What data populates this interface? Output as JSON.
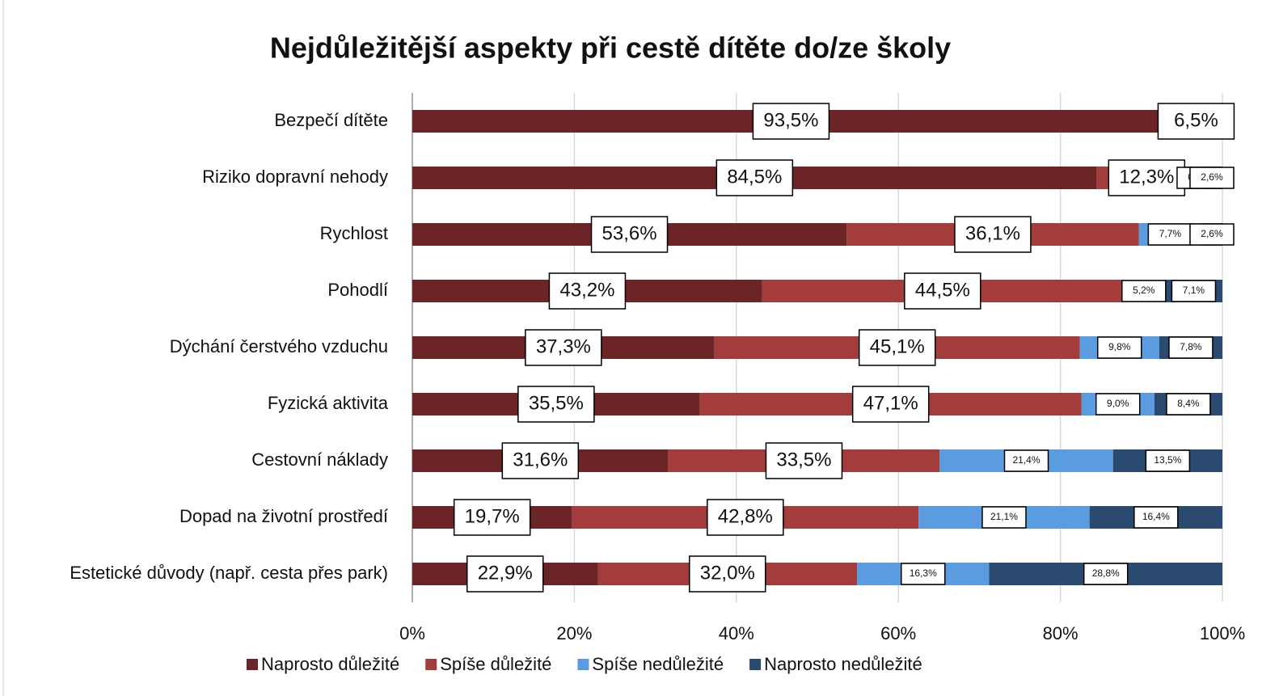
{
  "chart_data": {
    "type": "stacked-bar-horizontal",
    "title": "Nejdůležitější aspekty při cestě dítěte do/ze školy",
    "categories": [
      "Bezpečí dítěte",
      "Riziko dopravní nehody",
      "Rychlost",
      "Pohodlí",
      "Dýchání čerstvého vzduchu",
      "Fyzická aktivita",
      "Cestovní náklady",
      "Dopad na životní prostředí",
      "Estetické důvody (např. cesta přes park)"
    ],
    "series": [
      {
        "name": "Naprosto důležité",
        "color": "#6b2527",
        "values": [
          93.5,
          84.5,
          53.6,
          43.2,
          37.3,
          35.5,
          31.6,
          19.7,
          22.9
        ],
        "value_labels": [
          "93,5%",
          "84,5%",
          "53,6%",
          "43,2%",
          "37,3%",
          "35,5%",
          "31,6%",
          "19,7%",
          "22,9%"
        ]
      },
      {
        "name": "Spíše důležité",
        "color": "#a23d3c",
        "values": [
          6.5,
          12.3,
          36.1,
          44.5,
          45.1,
          47.1,
          33.5,
          42.8,
          32.0
        ],
        "value_labels": [
          "6,5%",
          "12,3%",
          "36,1%",
          "44,5%",
          "45,1%",
          "47,1%",
          "33,5%",
          "42,8%",
          "32,0%"
        ]
      },
      {
        "name": "Spíše nedůležité",
        "color": "#5b9be0",
        "values": [
          null,
          0.6,
          7.7,
          5.2,
          9.8,
          9.0,
          21.4,
          21.1,
          16.3
        ],
        "value_labels": [
          null,
          "0,6%",
          "7,7%",
          "5,2%",
          "9,8%",
          "9,0%",
          "21,4%",
          "21,1%",
          "16,3%"
        ]
      },
      {
        "name": "Naprosto nedůležité",
        "color": "#2b4a6f",
        "values": [
          null,
          2.6,
          2.6,
          7.1,
          7.8,
          8.4,
          13.5,
          16.4,
          28.8
        ],
        "value_labels": [
          null,
          "2,6%",
          "2,6%",
          "7,1%",
          "7,8%",
          "8,4%",
          "13,5%",
          "16,4%",
          "28,8%"
        ]
      }
    ],
    "xlim": [
      0,
      100
    ],
    "xticks": [
      {
        "value": 0,
        "label": "0%"
      },
      {
        "value": 20,
        "label": "20%"
      },
      {
        "value": 40,
        "label": "40%"
      },
      {
        "value": 60,
        "label": "60%"
      },
      {
        "value": 80,
        "label": "80%"
      },
      {
        "value": 100,
        "label": "100%"
      }
    ],
    "grid": true,
    "legend": "bottom"
  }
}
